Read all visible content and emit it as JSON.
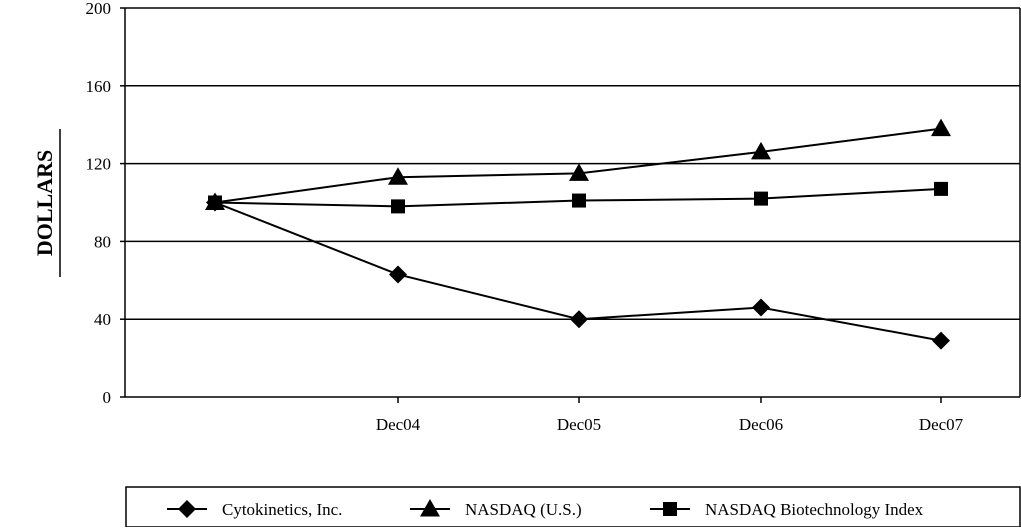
{
  "chart_data": {
    "type": "line",
    "ylabel": "DOLLARS",
    "ylim": [
      0,
      200
    ],
    "yticks": [
      "0",
      "40",
      "80",
      "120",
      "160",
      "200"
    ],
    "categories": [
      "",
      "Dec04",
      "Dec05",
      "Dec06",
      "Dec07"
    ],
    "grid": "horizontal",
    "legend_placement": "bottom",
    "series": [
      {
        "name": "Cytokinetics, Inc.",
        "marker": "diamond",
        "values": [
          100,
          63,
          40,
          46,
          29
        ]
      },
      {
        "name": "NASDAQ (U.S.)",
        "marker": "triangle",
        "values": [
          100,
          113,
          115,
          126,
          138
        ]
      },
      {
        "name": "NASDAQ Biotechnology Index",
        "marker": "square",
        "values": [
          100,
          98,
          101,
          102,
          107
        ]
      }
    ]
  }
}
